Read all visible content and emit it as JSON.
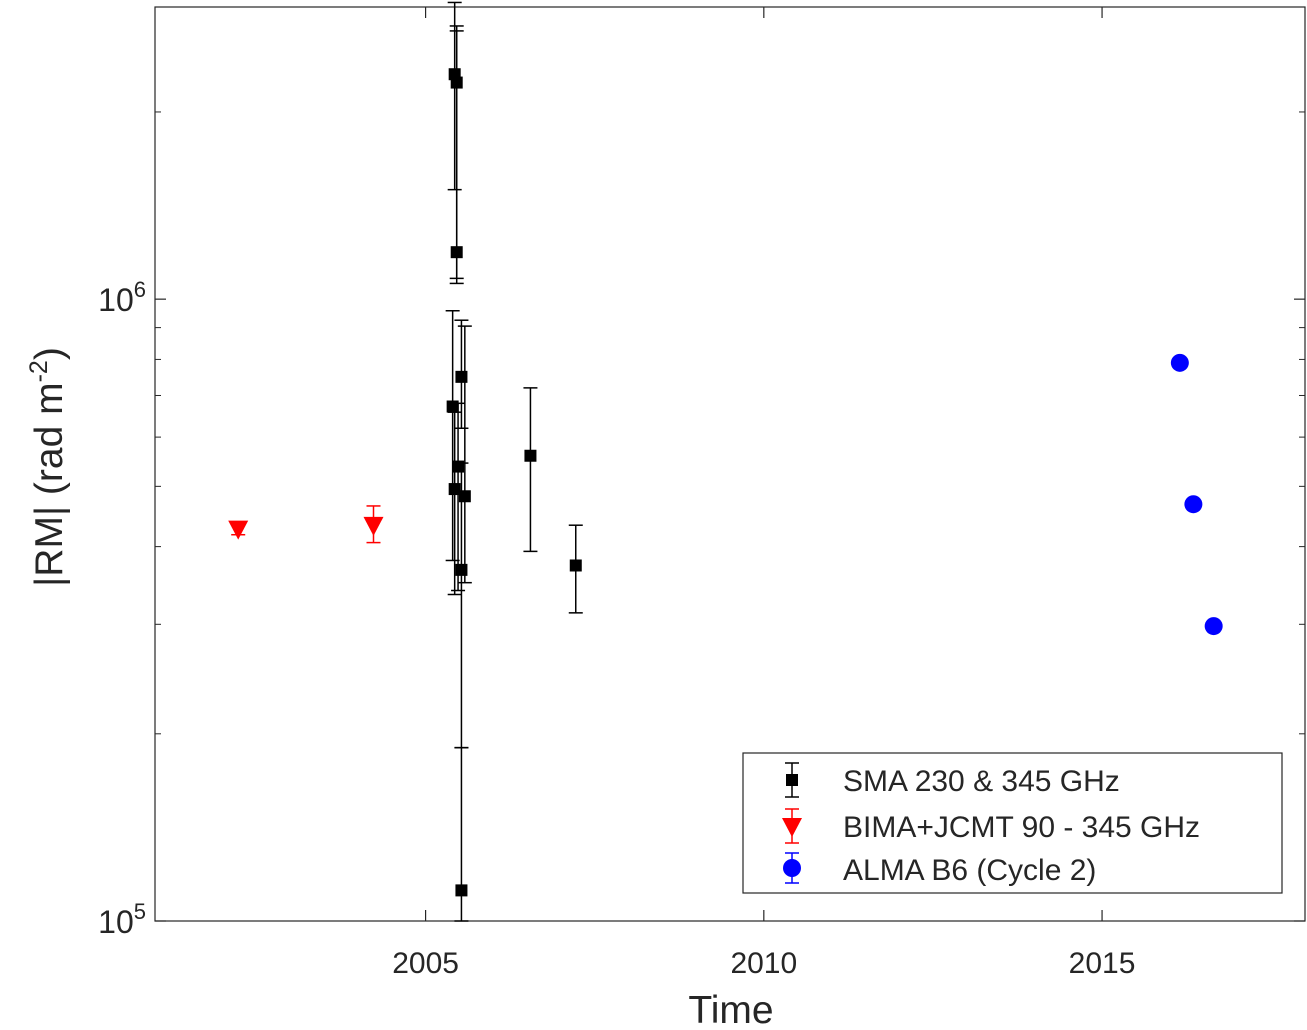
{
  "chart_data": {
    "type": "scatter",
    "title": "",
    "xlabel": "Time",
    "ylabel_main": "|RM| (rad m",
    "ylabel_sup": "-2",
    "ylabel_close": ")",
    "xlim": [
      2001.0,
      2018.0
    ],
    "ylim": [
      100000,
      2950000
    ],
    "yscale": "log",
    "grid": false,
    "legend_position": "bottom-right",
    "x_ticks": [
      {
        "value": 2005,
        "label": "2005"
      },
      {
        "value": 2010,
        "label": "2010"
      },
      {
        "value": 2015,
        "label": "2015"
      }
    ],
    "y_ticks": [
      {
        "value": 100000,
        "base": "10",
        "exp": "5"
      },
      {
        "value": 1000000,
        "base": "10",
        "exp": "6"
      }
    ],
    "series": [
      {
        "name": "SMA 230 & 345 GHz",
        "marker": "square",
        "color": "#000000",
        "points": [
          {
            "x": 2005.43,
            "y": 2300000,
            "ylo": 1500000,
            "yhi": 3000000
          },
          {
            "x": 2005.46,
            "y": 2230000,
            "ylo": 1080000,
            "yhi": 2700000
          },
          {
            "x": 2005.46,
            "y": 1190000,
            "ylo": 1060000,
            "yhi": 2750000
          },
          {
            "x": 2005.4,
            "y": 672000,
            "ylo": 380000,
            "yhi": 958000
          },
          {
            "x": 2005.48,
            "y": 538000,
            "ylo": 340000,
            "yhi": 680000
          },
          {
            "x": 2005.43,
            "y": 495000,
            "ylo": 335000,
            "yhi": 658000
          },
          {
            "x": 2005.53,
            "y": 750000,
            "ylo": 620000,
            "yhi": 925000
          },
          {
            "x": 2005.58,
            "y": 482000,
            "ylo": 350000,
            "yhi": 905000
          },
          {
            "x": 2005.53,
            "y": 367000,
            "ylo": 190000,
            "yhi": 545000
          },
          {
            "x": 2005.53,
            "y": 112000,
            "ylo": 100000,
            "yhi": 190000
          },
          {
            "x": 2006.55,
            "y": 560000,
            "ylo": 393000,
            "yhi": 720000
          },
          {
            "x": 2007.22,
            "y": 373000,
            "ylo": 313000,
            "yhi": 433000
          }
        ]
      },
      {
        "name": "BIMA+JCMT 90 - 345 GHz",
        "marker": "triangle-down",
        "color": "#ff0000",
        "points": [
          {
            "x": 2002.23,
            "y": 426000,
            "ylo": 418000,
            "yhi": 434000
          },
          {
            "x": 2004.23,
            "y": 432000,
            "ylo": 406000,
            "yhi": 465000
          }
        ]
      },
      {
        "name": "ALMA B6 (Cycle 2)",
        "marker": "circle",
        "color": "#0000ff",
        "points": [
          {
            "x": 2016.15,
            "y": 790000
          },
          {
            "x": 2016.35,
            "y": 468000
          },
          {
            "x": 2016.65,
            "y": 298000
          }
        ]
      }
    ]
  }
}
